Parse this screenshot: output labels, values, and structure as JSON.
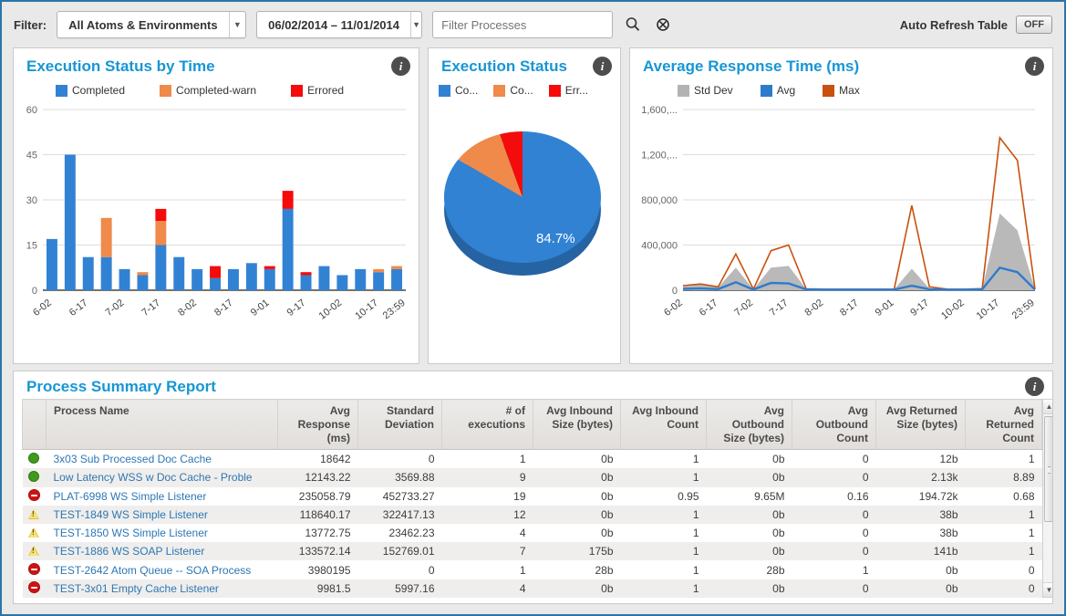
{
  "filter_bar": {
    "label": "Filter:",
    "atoms_dropdown": {
      "value": "All Atoms & Environments"
    },
    "date_dropdown": {
      "value": "06/02/2014 – 11/01/2014"
    },
    "process_filter": {
      "placeholder": "Filter Processes"
    },
    "icons": [
      "search-icon",
      "clear-search-icon"
    ],
    "auto_refresh": {
      "label": "Auto Refresh Table",
      "state": "OFF"
    }
  },
  "chart_data": [
    {
      "type": "bar",
      "title": "Execution Status by Time",
      "stacked": true,
      "legend_position": "top",
      "grid": true,
      "legend": [
        {
          "label": "Completed",
          "color": "#3282d3"
        },
        {
          "label": "Completed-warn",
          "color": "#f08a4b"
        },
        {
          "label": "Errored",
          "color": "#f40b0b"
        }
      ],
      "ylim": [
        0,
        60
      ],
      "y_ticks": [
        0,
        15,
        30,
        45,
        60
      ],
      "x_tick_labels": [
        "6-02",
        "6-17",
        "7-02",
        "7-17",
        "8-02",
        "8-17",
        "9-01",
        "9-17",
        "10-02",
        "10-17",
        "23:59"
      ],
      "series": [
        {
          "name": "Completed",
          "color": "#3282d3",
          "values": [
            17,
            45,
            11,
            11,
            7,
            5,
            15,
            11,
            7,
            4,
            7,
            9,
            7,
            27,
            5,
            8,
            5,
            7,
            6,
            7
          ]
        },
        {
          "name": "Completed-warn",
          "color": "#f08a4b",
          "values": [
            0,
            0,
            0,
            13,
            0,
            1,
            8,
            0,
            0,
            0,
            0,
            0,
            0,
            0,
            0,
            0,
            0,
            0,
            1,
            1
          ]
        },
        {
          "name": "Errored",
          "color": "#f40b0b",
          "values": [
            0,
            0,
            0,
            0,
            0,
            0,
            4,
            0,
            0,
            4,
            0,
            0,
            1,
            6,
            1,
            0,
            0,
            0,
            0,
            0
          ]
        }
      ]
    },
    {
      "type": "pie",
      "title": "Execution Status",
      "legend_position": "top",
      "legend": [
        {
          "label": "Co...",
          "color": "#3282d3"
        },
        {
          "label": "Co...",
          "color": "#f08a4b"
        },
        {
          "label": "Err...",
          "color": "#f40b0b"
        }
      ],
      "slices": [
        {
          "name": "Completed",
          "value": 84.7,
          "color": "#3282d3",
          "label": "84.7%"
        },
        {
          "name": "Completed-warn",
          "value": 10.6,
          "color": "#f08a4b",
          "label": ""
        },
        {
          "name": "Errored",
          "value": 4.7,
          "color": "#f40b0b",
          "label": ""
        }
      ]
    },
    {
      "type": "area-line",
      "title": "Average Response Time (ms)",
      "legend_position": "top",
      "grid": true,
      "legend": [
        {
          "label": "Std Dev",
          "color": "#b3b3b3"
        },
        {
          "label": "Avg",
          "color": "#2e7bcc"
        },
        {
          "label": "Max",
          "color": "#c9500f"
        }
      ],
      "ylim": [
        0,
        1600000
      ],
      "y_ticks": [
        0,
        400000,
        800000,
        1200000,
        1600000
      ],
      "y_tick_labels": [
        "0",
        "400,000",
        "800,000",
        "1,200,...",
        "1,600,..."
      ],
      "x_tick_labels": [
        "6-02",
        "6-17",
        "7-02",
        "7-17",
        "8-02",
        "8-17",
        "9-01",
        "9-17",
        "10-02",
        "10-17",
        "23:59"
      ],
      "series": [
        {
          "name": "Std Dev",
          "style": "area",
          "color": "#b9b9b9",
          "values": [
            30000,
            50000,
            25000,
            200000,
            8000,
            200000,
            215000,
            10000,
            6000,
            6000,
            6000,
            6000,
            8000,
            190000,
            15000,
            6000,
            6000,
            10000,
            680000,
            530000,
            8000
          ]
        },
        {
          "name": "Max",
          "style": "line",
          "color": "#c9500f",
          "values": [
            40000,
            55000,
            30000,
            320000,
            10000,
            350000,
            400000,
            12000,
            9000,
            9000,
            9000,
            9000,
            10000,
            750000,
            30000,
            10000,
            9000,
            14000,
            1350000,
            1150000,
            10000
          ]
        },
        {
          "name": "Avg",
          "style": "line",
          "color": "#2e7bcc",
          "values": [
            12000,
            15000,
            10000,
            70000,
            6000,
            65000,
            60000,
            7000,
            5000,
            5000,
            5000,
            5000,
            6000,
            40000,
            9000,
            5000,
            5000,
            8000,
            200000,
            160000,
            6000
          ]
        }
      ]
    }
  ],
  "table": {
    "title": "Process Summary Report",
    "columns": [
      {
        "key": "status",
        "lines": [
          ""
        ],
        "align": "left"
      },
      {
        "key": "name",
        "lines": [
          "Process Name"
        ],
        "align": "left"
      },
      {
        "key": "avg_response",
        "lines": [
          "Avg",
          "Response",
          "(ms)"
        ],
        "align": "right"
      },
      {
        "key": "std_dev",
        "lines": [
          "Standard",
          "Deviation"
        ],
        "align": "right"
      },
      {
        "key": "executions",
        "lines": [
          "# of",
          "executions"
        ],
        "align": "right"
      },
      {
        "key": "in_size",
        "lines": [
          "Avg Inbound",
          "Size (bytes)"
        ],
        "align": "right"
      },
      {
        "key": "in_count",
        "lines": [
          "Avg Inbound",
          "Count"
        ],
        "align": "right"
      },
      {
        "key": "out_size",
        "lines": [
          "Avg",
          "Outbound",
          "Size (bytes)"
        ],
        "align": "right"
      },
      {
        "key": "out_count",
        "lines": [
          "Avg",
          "Outbound",
          "Count"
        ],
        "align": "right"
      },
      {
        "key": "ret_size",
        "lines": [
          "Avg Returned",
          "Size (bytes)"
        ],
        "align": "right"
      },
      {
        "key": "ret_count",
        "lines": [
          "Avg Returned",
          "Count"
        ],
        "align": "right"
      }
    ],
    "rows": [
      {
        "status": "ok",
        "name": "3x03 Sub Processed Doc Cache",
        "avg_response": "18642",
        "std_dev": "0",
        "executions": "1",
        "in_size": "0b",
        "in_count": "1",
        "out_size": "0b",
        "out_count": "0",
        "ret_size": "12b",
        "ret_count": "1"
      },
      {
        "status": "ok",
        "name": "Low Latency WSS w Doc Cache - Proble",
        "avg_response": "12143.22",
        "std_dev": "3569.88",
        "executions": "9",
        "in_size": "0b",
        "in_count": "1",
        "out_size": "0b",
        "out_count": "0",
        "ret_size": "2.13k",
        "ret_count": "8.89"
      },
      {
        "status": "error",
        "name": "PLAT-6998 WS Simple Listener",
        "avg_response": "235058.79",
        "std_dev": "452733.27",
        "executions": "19",
        "in_size": "0b",
        "in_count": "0.95",
        "out_size": "9.65M",
        "out_count": "0.16",
        "ret_size": "194.72k",
        "ret_count": "0.68"
      },
      {
        "status": "warn",
        "name": "TEST-1849 WS Simple Listener",
        "avg_response": "118640.17",
        "std_dev": "322417.13",
        "executions": "12",
        "in_size": "0b",
        "in_count": "1",
        "out_size": "0b",
        "out_count": "0",
        "ret_size": "38b",
        "ret_count": "1"
      },
      {
        "status": "warn",
        "name": "TEST-1850 WS Simple Listener",
        "avg_response": "13772.75",
        "std_dev": "23462.23",
        "executions": "4",
        "in_size": "0b",
        "in_count": "1",
        "out_size": "0b",
        "out_count": "0",
        "ret_size": "38b",
        "ret_count": "1"
      },
      {
        "status": "warn",
        "name": "TEST-1886 WS SOAP Listener",
        "avg_response": "133572.14",
        "std_dev": "152769.01",
        "executions": "7",
        "in_size": "175b",
        "in_count": "1",
        "out_size": "0b",
        "out_count": "0",
        "ret_size": "141b",
        "ret_count": "1"
      },
      {
        "status": "error",
        "name": "TEST-2642 Atom Queue -- SOA Process",
        "avg_response": "3980195",
        "std_dev": "0",
        "executions": "1",
        "in_size": "28b",
        "in_count": "1",
        "out_size": "28b",
        "out_count": "1",
        "ret_size": "0b",
        "ret_count": "0"
      },
      {
        "status": "error",
        "name": "TEST-3x01 Empty Cache Listener",
        "avg_response": "9981.5",
        "std_dev": "5997.16",
        "executions": "4",
        "in_size": "0b",
        "in_count": "1",
        "out_size": "0b",
        "out_count": "0",
        "ret_size": "0b",
        "ret_count": "0"
      }
    ]
  },
  "colors": {
    "title": "#1796d3",
    "link": "#2d77b4",
    "frame": "#2d74a7"
  }
}
